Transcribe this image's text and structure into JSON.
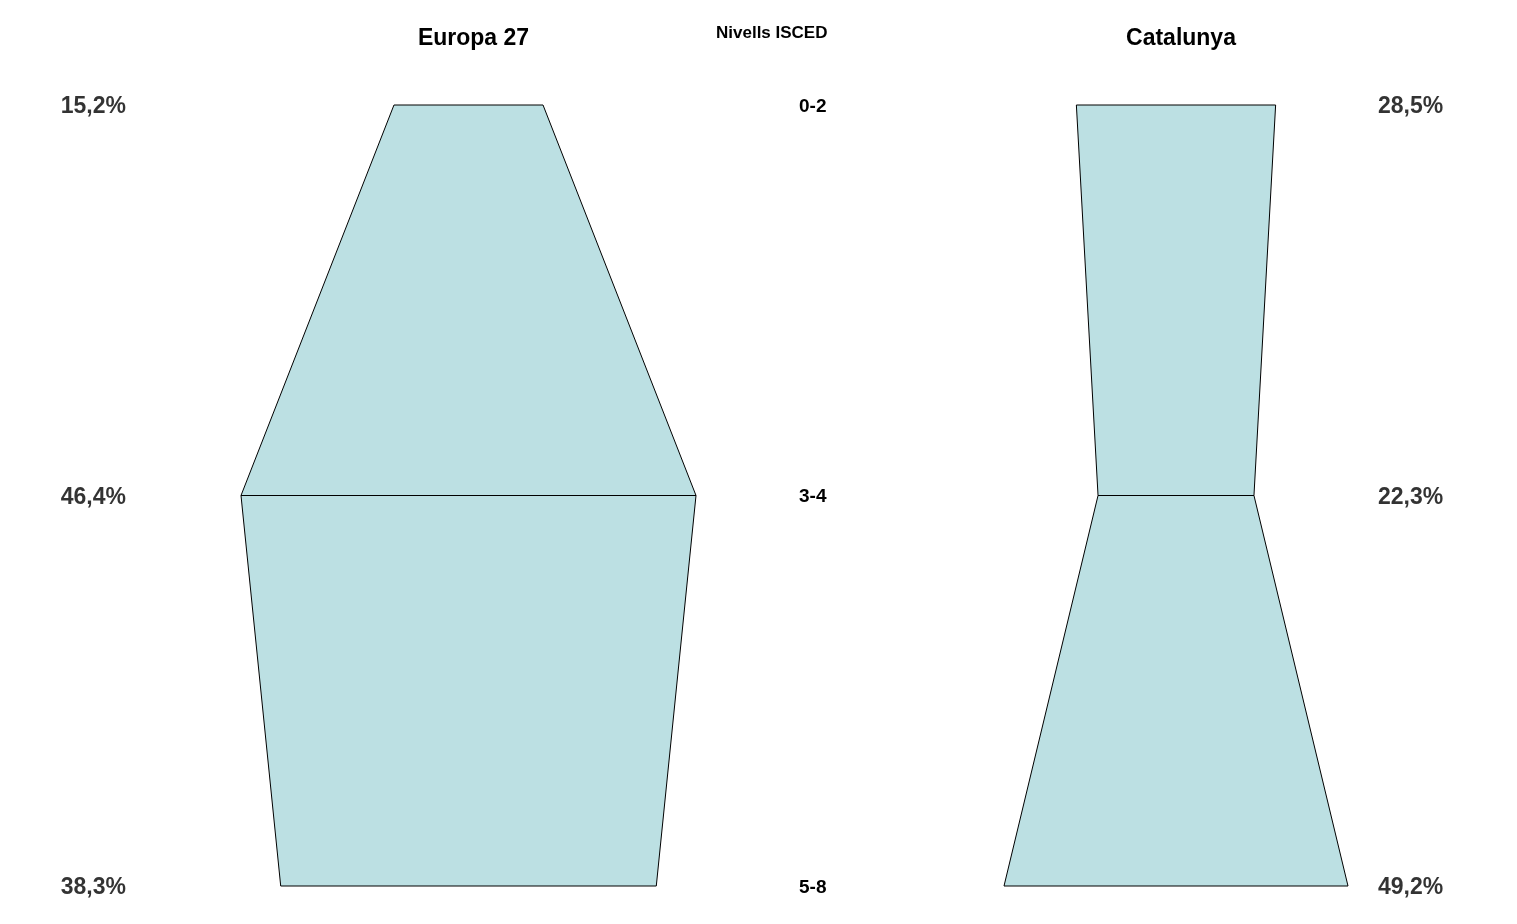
{
  "chart_data": [
    {
      "type": "other",
      "title": "Europa 27",
      "ylabel": "Nivells ISCED",
      "categories": [
        "0-2",
        "3-4",
        "5-8"
      ],
      "values": [
        15.2,
        46.4,
        38.3
      ],
      "value_labels": [
        "15,2%",
        "46,4%",
        "38,3%"
      ],
      "color": "#bce0e3"
    },
    {
      "type": "other",
      "title": "Catalunya",
      "values": [
        28.5,
        22.3,
        49.2
      ],
      "value_labels": [
        "28,5%",
        "22,3%",
        "49,2%"
      ],
      "color": "#bce0e3"
    }
  ]
}
